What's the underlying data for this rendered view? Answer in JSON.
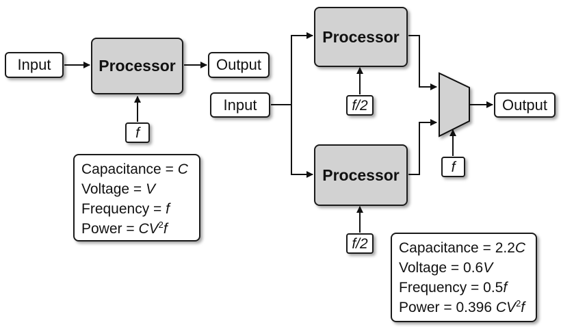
{
  "left": {
    "input_label": "Input",
    "processor_label": "Processor",
    "output_label": "Output",
    "freq_label": "f",
    "params": {
      "capacitance_label": "Capacitance",
      "capacitance_value": "C",
      "voltage_label": "Voltage",
      "voltage_value": "V",
      "frequency_label": "Frequency",
      "frequency_value": "f",
      "power_label": "Power",
      "power_value_prefix": "CV",
      "power_exponent": "2",
      "power_value_suffix": "f"
    }
  },
  "right": {
    "input_label": "Input",
    "processor_top_label": "Processor",
    "processor_bottom_label": "Processor",
    "freq_top_label": "f/2",
    "freq_bottom_label": "f/2",
    "mux_freq_label": "f",
    "output_label": "Output",
    "params": {
      "capacitance_label": "Capacitance",
      "capacitance_number": "2.2",
      "capacitance_symbol": "C",
      "voltage_label": "Voltage",
      "voltage_number": "0.6",
      "voltage_symbol": "V",
      "frequency_label": "Frequency",
      "frequency_number": "0.5",
      "frequency_symbol": "f",
      "power_label": "Power",
      "power_number": "0.396",
      "power_symbol_prefix": "CV",
      "power_exponent": "2",
      "power_symbol_suffix": "f"
    }
  }
}
